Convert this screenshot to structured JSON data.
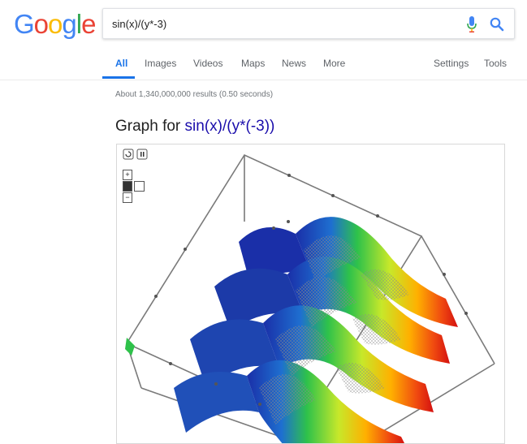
{
  "logo": {
    "letters": [
      "G",
      "o",
      "o",
      "g",
      "l",
      "e"
    ],
    "colors": [
      "#4285F4",
      "#EA4335",
      "#FBBC05",
      "#4285F4",
      "#34A853",
      "#EA4335"
    ]
  },
  "search": {
    "query": "sin(x)/(y*-3)",
    "mic_icon": "mic-icon",
    "search_icon": "search-icon"
  },
  "tabs": {
    "all": "All",
    "images": "Images",
    "videos": "Videos",
    "maps": "Maps",
    "news": "News",
    "more": "More",
    "settings": "Settings",
    "tools": "Tools"
  },
  "results": {
    "stats": "About 1,340,000,000 results (0.50 seconds)"
  },
  "graph": {
    "title_prefix": "Graph for ",
    "expression": "sin(x)/(y*(-3))",
    "controls": {
      "reset_icon": "reset-icon",
      "pause_icon": "pause-icon",
      "zoom_in": "+",
      "zoom_out": "−",
      "camera_icon": "camera-icon",
      "axes_icon": "axes-icon"
    }
  },
  "colors": {
    "accent": "#1a73e8",
    "link": "#1a0dab",
    "muted": "#70757a"
  }
}
